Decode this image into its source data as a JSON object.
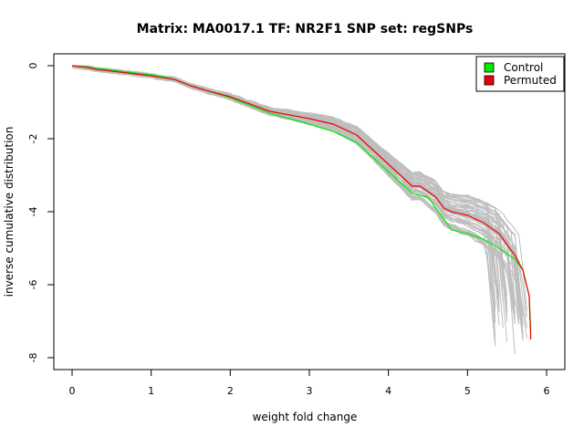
{
  "chart_data": {
    "type": "line",
    "title": "Matrix: MA0017.1 TF: NR2F1 SNP set: regSNPs",
    "xlabel": "weight fold change",
    "ylabel": "inverse cumulative distribution",
    "xlim": [
      0,
      6
    ],
    "ylim": [
      -8,
      0
    ],
    "x_ticks": [
      "0",
      "1",
      "2",
      "3",
      "4",
      "5",
      "6"
    ],
    "y_ticks": [
      "0",
      "-2",
      "-4",
      "-6",
      "-8"
    ],
    "grid": false,
    "legend_position": "top-right",
    "background_series_color": "#bebebe",
    "series": [
      {
        "name": "Control",
        "color": "#00ee00",
        "x": [
          0,
          0.2,
          0.3,
          0.45,
          0.6,
          0.8,
          1.0,
          1.2,
          1.3,
          1.5,
          1.7,
          2.0,
          2.5,
          3.0,
          3.3,
          3.6,
          3.8,
          4.0,
          4.2,
          4.3,
          4.4,
          4.5,
          4.6,
          4.7,
          4.8,
          5.0,
          5.2,
          5.4,
          5.6,
          5.7,
          5.78,
          5.8
        ],
        "y": [
          0,
          -0.03,
          -0.08,
          -0.1,
          -0.15,
          -0.2,
          -0.25,
          -0.32,
          -0.38,
          -0.55,
          -0.68,
          -0.88,
          -1.3,
          -1.6,
          -1.8,
          -2.1,
          -2.5,
          -2.9,
          -3.3,
          -3.5,
          -3.55,
          -3.6,
          -3.9,
          -4.2,
          -4.5,
          -4.6,
          -4.75,
          -5.0,
          -5.3,
          -5.6,
          -6.3,
          -7.3
        ]
      },
      {
        "name": "Permuted",
        "color": "#ee0000",
        "x": [
          0,
          0.2,
          0.3,
          0.5,
          0.7,
          1.0,
          1.3,
          1.5,
          1.7,
          2.0,
          2.5,
          3.0,
          3.3,
          3.6,
          3.8,
          4.0,
          4.2,
          4.3,
          4.4,
          4.5,
          4.6,
          4.7,
          4.8,
          5.0,
          5.2,
          5.4,
          5.6,
          5.7,
          5.78,
          5.8
        ],
        "y": [
          0,
          -0.05,
          -0.1,
          -0.15,
          -0.2,
          -0.28,
          -0.38,
          -0.55,
          -0.68,
          -0.85,
          -1.25,
          -1.45,
          -1.6,
          -1.9,
          -2.3,
          -2.7,
          -3.1,
          -3.3,
          -3.3,
          -3.45,
          -3.6,
          -3.9,
          -4.0,
          -4.1,
          -4.3,
          -4.6,
          -5.2,
          -5.6,
          -6.3,
          -7.5
        ]
      }
    ]
  }
}
